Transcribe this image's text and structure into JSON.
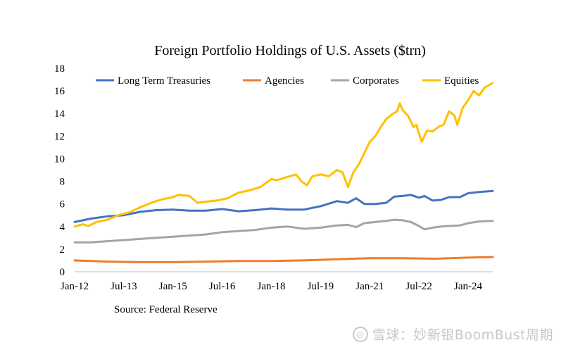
{
  "chart_data": {
    "type": "line",
    "title": "Foreign Portfolio Holdings of U.S. Assets ($trn)",
    "xlabel": "",
    "ylabel": "",
    "ylim": [
      0,
      18
    ],
    "yticks": [
      0,
      2,
      4,
      6,
      8,
      10,
      12,
      14,
      16,
      18
    ],
    "xticks": [
      {
        "label": "Jan-12",
        "t": 0
      },
      {
        "label": "Jul-13",
        "t": 18
      },
      {
        "label": "Jan-15",
        "t": 36
      },
      {
        "label": "Jul-16",
        "t": 54
      },
      {
        "label": "Jan-18",
        "t": 72
      },
      {
        "label": "Jul-19",
        "t": 90
      },
      {
        "label": "Jan-21",
        "t": 108
      },
      {
        "label": "Jul-22",
        "t": 126
      },
      {
        "label": "Jan-24",
        "t": 144
      }
    ],
    "x_months_range": [
      0,
      153
    ],
    "legend_position": "top",
    "series": [
      {
        "name": "Long Term Treasuries",
        "color": "#4472C4",
        "points": [
          [
            0,
            4.4
          ],
          [
            6,
            4.7
          ],
          [
            12,
            4.9
          ],
          [
            18,
            5.0
          ],
          [
            24,
            5.3
          ],
          [
            30,
            5.45
          ],
          [
            36,
            5.5
          ],
          [
            42,
            5.4
          ],
          [
            48,
            5.4
          ],
          [
            54,
            5.55
          ],
          [
            60,
            5.35
          ],
          [
            66,
            5.45
          ],
          [
            72,
            5.6
          ],
          [
            78,
            5.5
          ],
          [
            84,
            5.5
          ],
          [
            90,
            5.8
          ],
          [
            96,
            6.25
          ],
          [
            100,
            6.1
          ],
          [
            103,
            6.5
          ],
          [
            106,
            6.0
          ],
          [
            110,
            6.0
          ],
          [
            114,
            6.1
          ],
          [
            117,
            6.65
          ],
          [
            120,
            6.7
          ],
          [
            123,
            6.8
          ],
          [
            126,
            6.55
          ],
          [
            128,
            6.7
          ],
          [
            131,
            6.3
          ],
          [
            134,
            6.35
          ],
          [
            137,
            6.6
          ],
          [
            141,
            6.6
          ],
          [
            144,
            6.95
          ],
          [
            148,
            7.05
          ],
          [
            153,
            7.15
          ]
        ]
      },
      {
        "name": "Agencies",
        "color": "#ED7D31",
        "points": [
          [
            0,
            1.0
          ],
          [
            12,
            0.9
          ],
          [
            24,
            0.85
          ],
          [
            36,
            0.85
          ],
          [
            48,
            0.9
          ],
          [
            60,
            0.95
          ],
          [
            72,
            0.95
          ],
          [
            84,
            1.0
          ],
          [
            96,
            1.1
          ],
          [
            108,
            1.2
          ],
          [
            120,
            1.2
          ],
          [
            132,
            1.15
          ],
          [
            144,
            1.25
          ],
          [
            153,
            1.3
          ]
        ]
      },
      {
        "name": "Corporates",
        "color": "#A5A5A5",
        "points": [
          [
            0,
            2.6
          ],
          [
            6,
            2.6
          ],
          [
            12,
            2.7
          ],
          [
            18,
            2.8
          ],
          [
            24,
            2.9
          ],
          [
            30,
            3.0
          ],
          [
            36,
            3.1
          ],
          [
            42,
            3.2
          ],
          [
            48,
            3.3
          ],
          [
            54,
            3.5
          ],
          [
            60,
            3.6
          ],
          [
            66,
            3.7
          ],
          [
            72,
            3.9
          ],
          [
            78,
            4.0
          ],
          [
            84,
            3.8
          ],
          [
            90,
            3.9
          ],
          [
            96,
            4.1
          ],
          [
            100,
            4.15
          ],
          [
            103,
            3.95
          ],
          [
            106,
            4.3
          ],
          [
            110,
            4.4
          ],
          [
            114,
            4.5
          ],
          [
            117,
            4.6
          ],
          [
            120,
            4.55
          ],
          [
            123,
            4.4
          ],
          [
            126,
            4.05
          ],
          [
            128,
            3.75
          ],
          [
            131,
            3.9
          ],
          [
            134,
            4.0
          ],
          [
            137,
            4.05
          ],
          [
            141,
            4.1
          ],
          [
            144,
            4.3
          ],
          [
            148,
            4.45
          ],
          [
            153,
            4.5
          ]
        ]
      },
      {
        "name": "Equities",
        "color": "#FFC000",
        "points": [
          [
            0,
            4.0
          ],
          [
            3,
            4.2
          ],
          [
            5,
            4.05
          ],
          [
            8,
            4.4
          ],
          [
            12,
            4.6
          ],
          [
            16,
            5.0
          ],
          [
            20,
            5.25
          ],
          [
            24,
            5.7
          ],
          [
            28,
            6.1
          ],
          [
            32,
            6.4
          ],
          [
            36,
            6.6
          ],
          [
            38,
            6.8
          ],
          [
            42,
            6.7
          ],
          [
            45,
            6.1
          ],
          [
            48,
            6.2
          ],
          [
            52,
            6.3
          ],
          [
            56,
            6.5
          ],
          [
            60,
            7.0
          ],
          [
            64,
            7.2
          ],
          [
            68,
            7.5
          ],
          [
            72,
            8.2
          ],
          [
            74,
            8.1
          ],
          [
            78,
            8.4
          ],
          [
            81,
            8.6
          ],
          [
            83,
            8.0
          ],
          [
            85,
            7.65
          ],
          [
            87,
            8.45
          ],
          [
            90,
            8.6
          ],
          [
            93,
            8.45
          ],
          [
            96,
            9.0
          ],
          [
            98,
            8.8
          ],
          [
            100,
            7.5
          ],
          [
            102,
            8.8
          ],
          [
            104,
            9.5
          ],
          [
            106,
            10.5
          ],
          [
            108,
            11.5
          ],
          [
            110,
            12.0
          ],
          [
            112,
            12.8
          ],
          [
            114,
            13.5
          ],
          [
            116,
            13.9
          ],
          [
            118,
            14.2
          ],
          [
            119,
            14.9
          ],
          [
            120,
            14.3
          ],
          [
            122,
            13.8
          ],
          [
            124,
            12.8
          ],
          [
            125,
            13.0
          ],
          [
            127,
            11.5
          ],
          [
            129,
            12.5
          ],
          [
            131,
            12.4
          ],
          [
            133,
            12.8
          ],
          [
            135,
            13.0
          ],
          [
            137,
            14.2
          ],
          [
            139,
            13.8
          ],
          [
            140,
            13.0
          ],
          [
            142,
            14.5
          ],
          [
            144,
            15.2
          ],
          [
            146,
            16.0
          ],
          [
            148,
            15.6
          ],
          [
            150,
            16.3
          ],
          [
            153,
            16.7
          ]
        ]
      }
    ],
    "annotation": "Source: Federal Reserve"
  },
  "watermark": "雪球：妙新银BoomBust周期",
  "watermark_logo": "◎"
}
